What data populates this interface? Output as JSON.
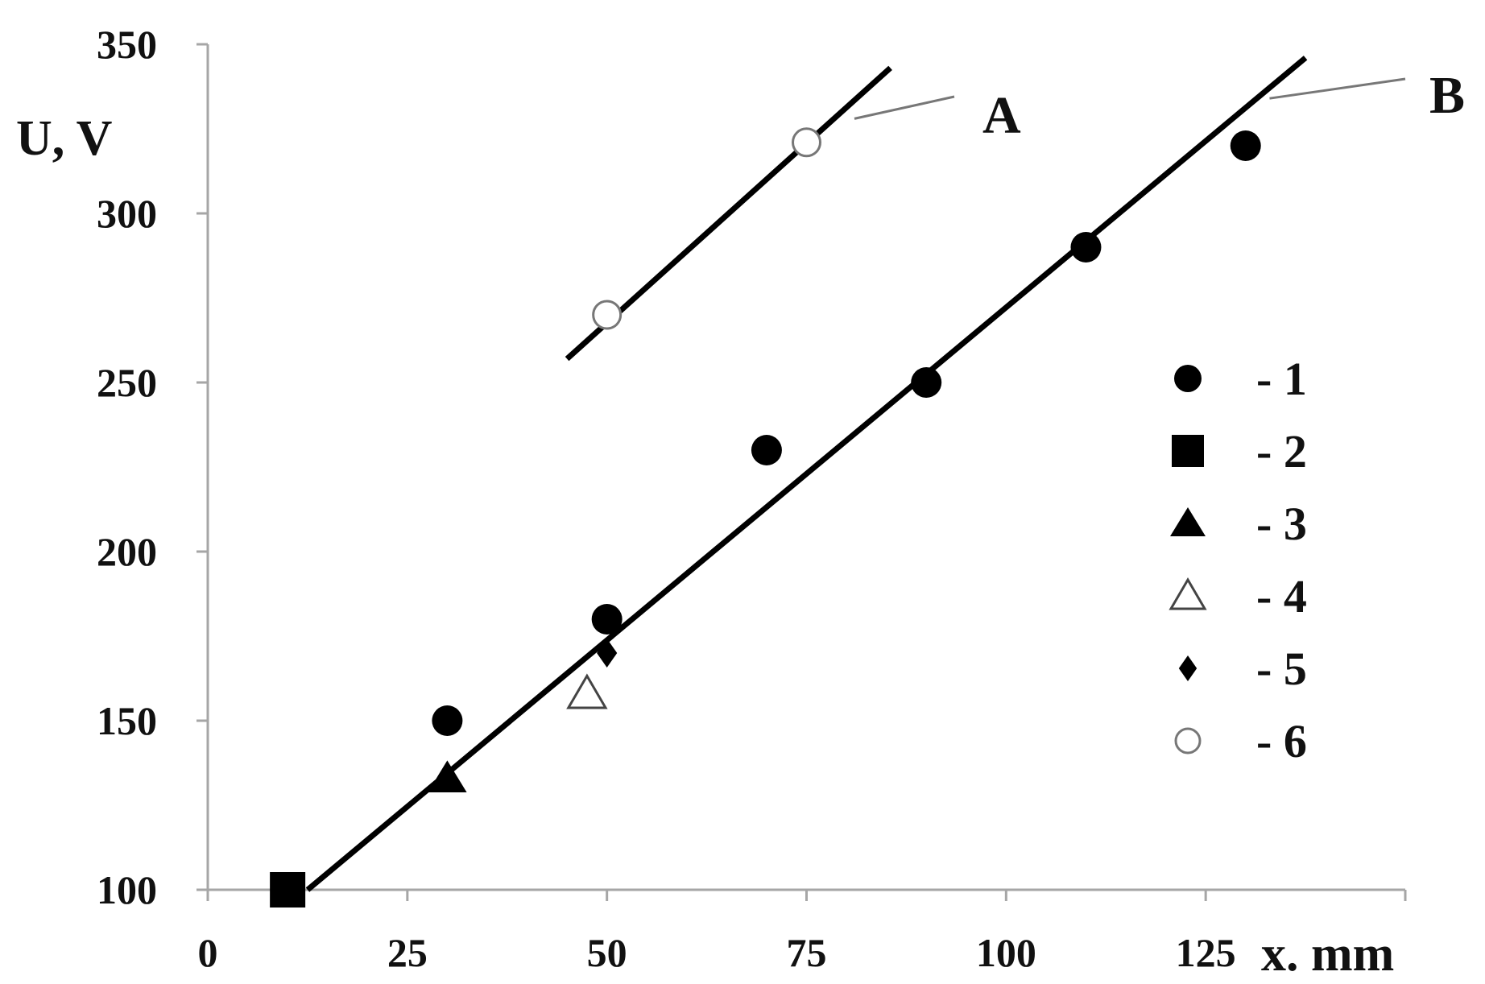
{
  "chart_data": {
    "type": "scatter",
    "xlabel": "x. mm",
    "ylabel": "U, V",
    "xlim": [
      0,
      150
    ],
    "ylim": [
      100,
      350
    ],
    "x_ticks": [
      "0",
      "25",
      "50",
      "75",
      "100",
      "125"
    ],
    "x_tick_values": [
      0,
      25,
      50,
      75,
      100,
      125
    ],
    "y_ticks": [
      "100",
      "150",
      "200",
      "250",
      "300",
      "350"
    ],
    "y_tick_values": [
      100,
      150,
      200,
      250,
      300,
      350
    ],
    "grid": false,
    "legend_position": "right",
    "series": [
      {
        "name": "- 1",
        "marker": "circle-filled",
        "points": [
          [
            30,
            150
          ],
          [
            50,
            180
          ],
          [
            70,
            230
          ],
          [
            90,
            250
          ],
          [
            110,
            290
          ],
          [
            130,
            320
          ]
        ]
      },
      {
        "name": "- 2",
        "marker": "square-filled",
        "points": [
          [
            10,
            100
          ]
        ]
      },
      {
        "name": "- 3",
        "marker": "triangle-filled",
        "points": [
          [
            30,
            133
          ]
        ]
      },
      {
        "name": "- 4",
        "marker": "triangle-open",
        "points": [
          [
            47.5,
            158
          ]
        ]
      },
      {
        "name": "- 5",
        "marker": "diamond-filled",
        "points": [
          [
            50,
            170
          ]
        ]
      },
      {
        "name": "- 6",
        "marker": "circle-open",
        "points": [
          [
            50,
            270
          ],
          [
            75,
            321
          ]
        ]
      }
    ],
    "lines": [
      {
        "label": "A",
        "from": [
          45,
          257
        ],
        "to": [
          85.5,
          343
        ]
      },
      {
        "label": "B",
        "from": [
          12.5,
          100
        ],
        "to": [
          137.5,
          346
        ]
      }
    ]
  }
}
